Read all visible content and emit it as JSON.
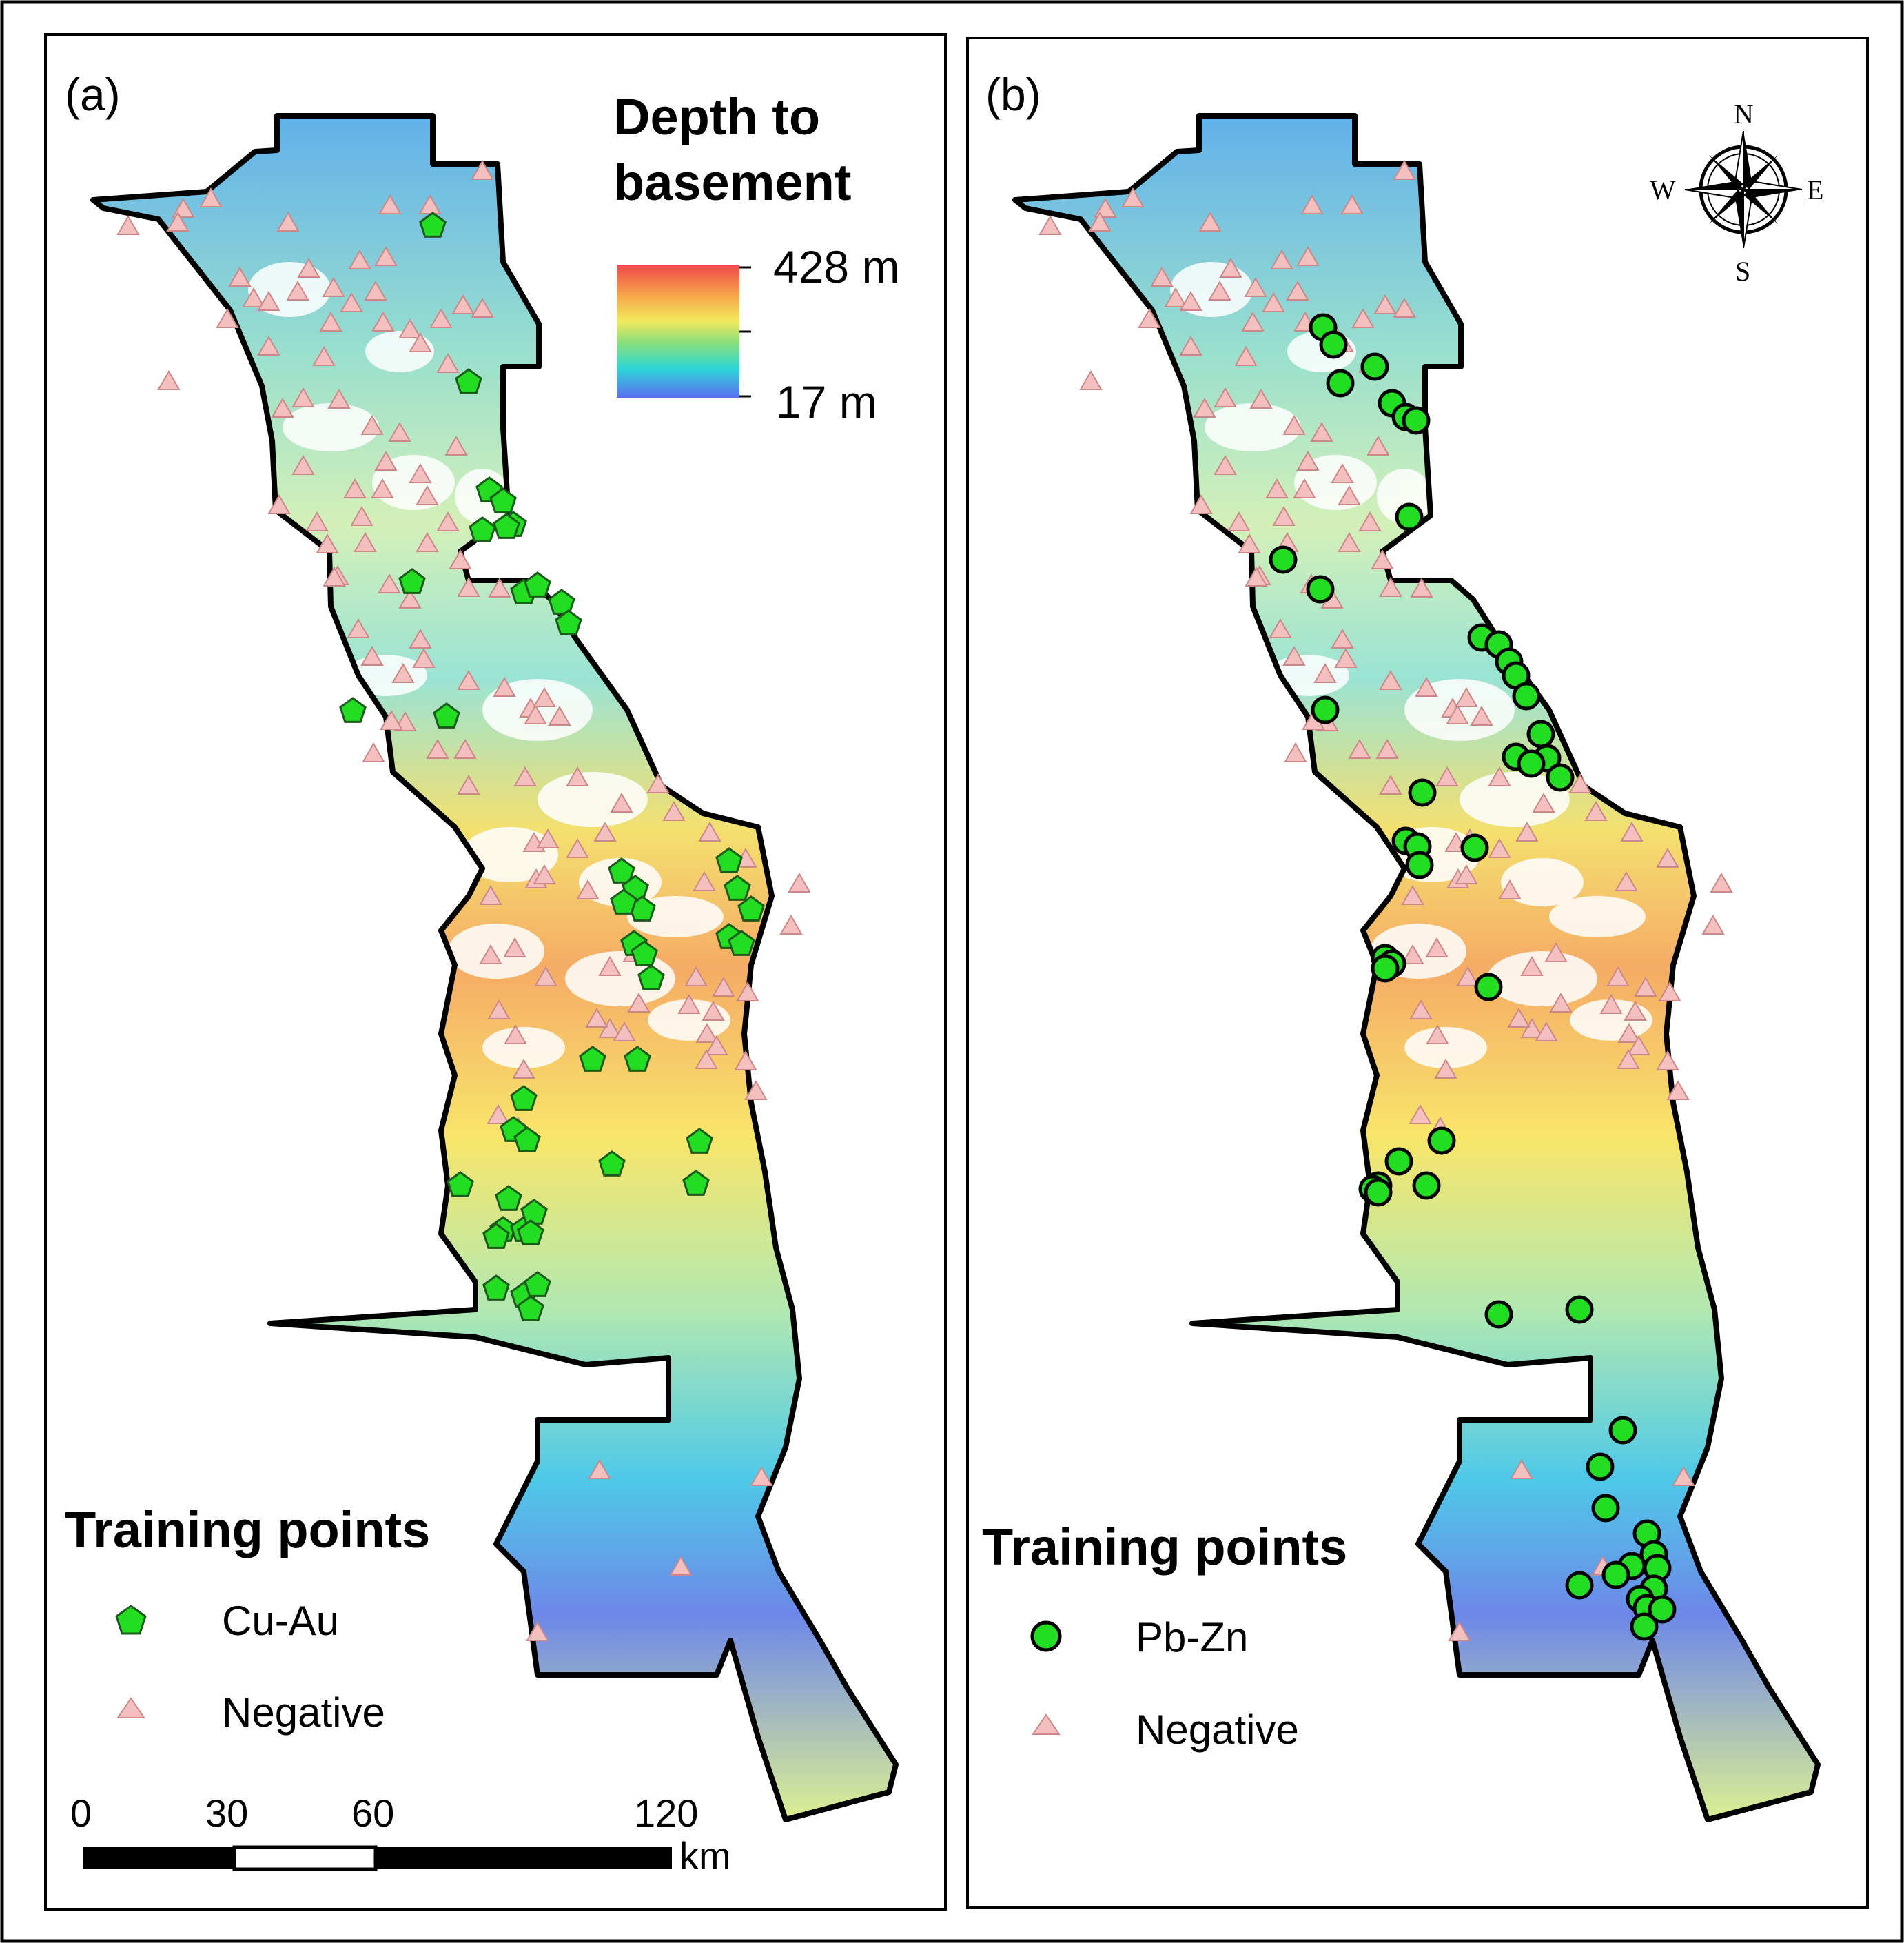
{
  "panel_a": {
    "label": "(a)",
    "legend_title_line1": "Depth to",
    "legend_title_line2": "basement",
    "ramp_max": "428 m",
    "ramp_min": "17 m",
    "training_title": "Training points",
    "item_cuau": "Cu-Au",
    "item_negative": "Negative",
    "scale_ticks": [
      "0",
      "30",
      "60",
      "120"
    ],
    "scale_unit": "km"
  },
  "panel_b": {
    "label": "(b)",
    "training_title": "Training points",
    "item_pbzn": "Pb-Zn",
    "item_negative": "Negative",
    "compass": {
      "n": "N",
      "s": "S",
      "e": "E",
      "w": "W"
    }
  },
  "colors": {
    "cuau_marker": "#22dd22",
    "pbzn_marker": "#22dd22",
    "negative_marker": "#f3c0bf",
    "ramp_top": "#f04a4a",
    "ramp_bottom": "#5a6ef0"
  }
}
